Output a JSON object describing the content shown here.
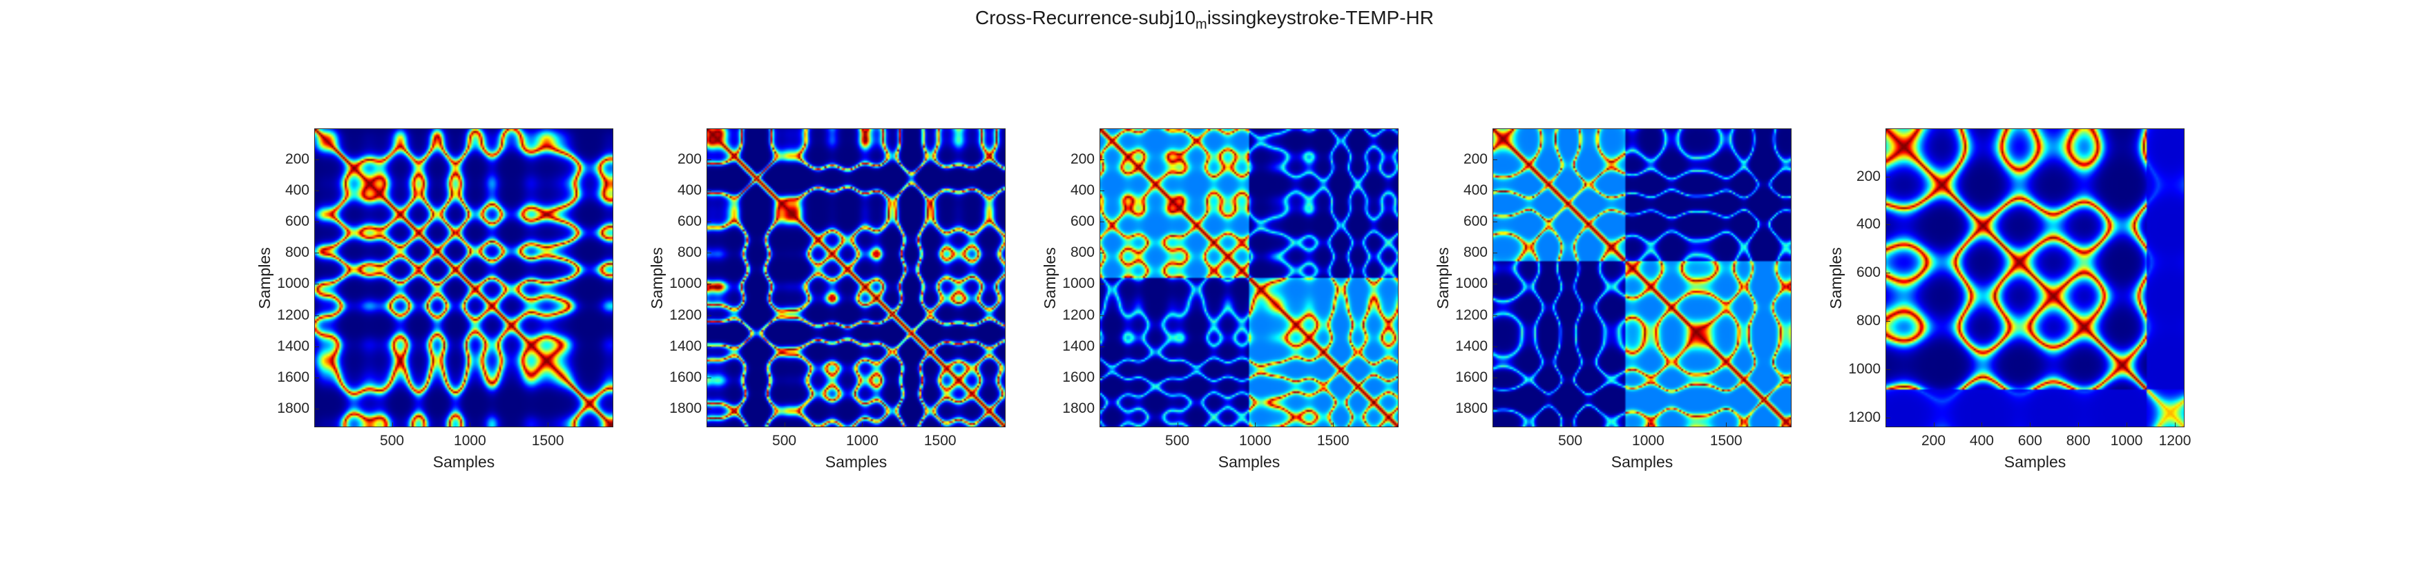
{
  "title": {
    "prefix": "Cross-Recurrence-subj10",
    "subscript": "m",
    "suffix": "issingkeystroke-TEMP-HR"
  },
  "colormap": "jet",
  "chart_data": [
    {
      "type": "heatmap",
      "xlabel": "Samples",
      "ylabel": "Samples",
      "xlim": [
        1,
        1920
      ],
      "ylim": [
        1,
        1920
      ],
      "y_reversed": true,
      "xticks": [
        500,
        1000,
        1500
      ],
      "yticks": [
        200,
        400,
        600,
        800,
        1000,
        1200,
        1400,
        1600,
        1800
      ],
      "description_values": {
        "diagonal_strength": 1.0,
        "texture_period": 190,
        "seed": 11
      }
    },
    {
      "type": "heatmap",
      "xlabel": "Samples",
      "ylabel": "Samples",
      "xlim": [
        1,
        1920
      ],
      "ylim": [
        1,
        1920
      ],
      "y_reversed": true,
      "xticks": [
        500,
        1000,
        1500
      ],
      "yticks": [
        200,
        400,
        600,
        800,
        1000,
        1200,
        1400,
        1600,
        1800
      ],
      "description_values": {
        "diagonal_strength": 1.0,
        "texture_period": 210,
        "seed": 23
      }
    },
    {
      "type": "heatmap",
      "xlabel": "Samples",
      "ylabel": "Samples",
      "xlim": [
        1,
        1920
      ],
      "ylim": [
        1,
        1920
      ],
      "y_reversed": true,
      "xticks": [
        500,
        1000,
        1500
      ],
      "yticks": [
        200,
        400,
        600,
        800,
        1000,
        1200,
        1400,
        1600,
        1800
      ],
      "description_values": {
        "diagonal_strength": 1.0,
        "block_split": 950,
        "seed": 37
      }
    },
    {
      "type": "heatmap",
      "xlabel": "Samples",
      "ylabel": "Samples",
      "xlim": [
        1,
        1920
      ],
      "ylim": [
        1,
        1920
      ],
      "y_reversed": true,
      "xticks": [
        500,
        1000,
        1500
      ],
      "yticks": [
        200,
        400,
        600,
        800,
        1000,
        1200,
        1400,
        1600,
        1800
      ],
      "description_values": {
        "diagonal_strength": 1.0,
        "block_split": 850,
        "seed": 41
      }
    },
    {
      "type": "heatmap",
      "xlabel": "Samples",
      "ylabel": "Samples",
      "xlim": [
        1,
        1240
      ],
      "ylim": [
        1,
        1240
      ],
      "y_reversed": true,
      "xticks": [
        200,
        400,
        600,
        800,
        1000,
        1200
      ],
      "yticks": [
        200,
        400,
        600,
        800,
        1000,
        1200
      ],
      "description_values": {
        "diagonal_strength": 1.0,
        "active_limit": 1080,
        "seed": 53
      }
    }
  ]
}
